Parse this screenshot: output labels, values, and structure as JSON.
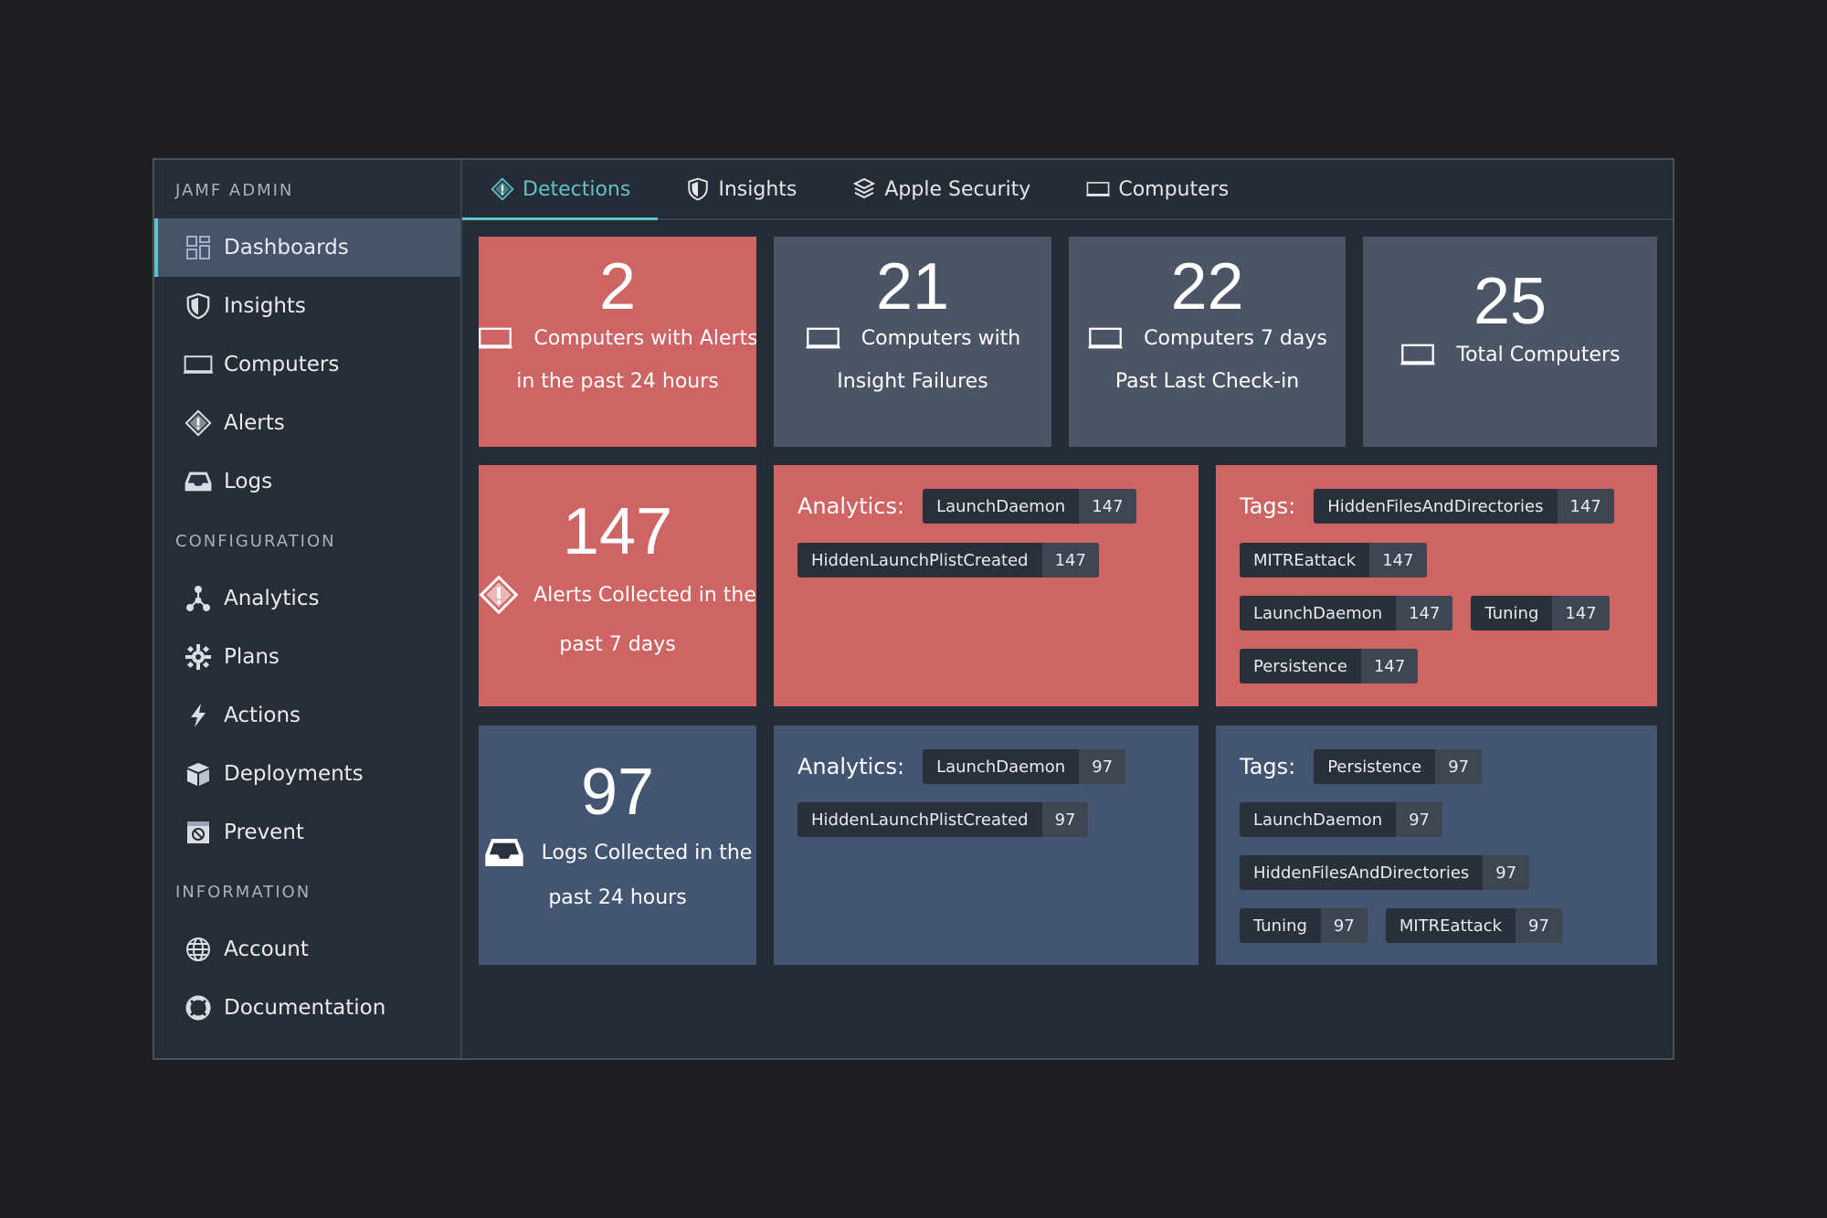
{
  "sidebar": {
    "sections": {
      "admin": "JAMF ADMIN",
      "configuration": "CONFIGURATION",
      "information": "INFORMATION"
    },
    "items": [
      {
        "label": "Dashboards",
        "icon": "dashboard-icon"
      },
      {
        "label": "Insights",
        "icon": "shield-icon"
      },
      {
        "label": "Computers",
        "icon": "laptop-icon"
      },
      {
        "label": "Alerts",
        "icon": "alert-diamond-icon"
      },
      {
        "label": "Logs",
        "icon": "inbox-icon"
      },
      {
        "label": "Analytics",
        "icon": "analytics-icon"
      },
      {
        "label": "Plans",
        "icon": "gear-icon"
      },
      {
        "label": "Actions",
        "icon": "lightning-icon"
      },
      {
        "label": "Deployments",
        "icon": "package-icon"
      },
      {
        "label": "Prevent",
        "icon": "prevent-icon"
      },
      {
        "label": "Account",
        "icon": "globe-icon"
      },
      {
        "label": "Documentation",
        "icon": "lifebuoy-icon"
      }
    ],
    "active": "Dashboards"
  },
  "tabs": [
    {
      "label": "Detections",
      "icon": "alert-diamond-icon",
      "active": true
    },
    {
      "label": "Insights",
      "icon": "shield-icon",
      "active": false
    },
    {
      "label": "Apple Security",
      "icon": "layers-icon",
      "active": false
    },
    {
      "label": "Computers",
      "icon": "laptop-icon",
      "active": false
    }
  ],
  "stats": {
    "alerts_24h": {
      "value": "2",
      "line1": "Computers with Alerts",
      "line2": "in the past 24 hours"
    },
    "insight_failures": {
      "value": "21",
      "line1": "Computers with",
      "line2": "Insight Failures"
    },
    "checkin": {
      "value": "22",
      "line1": "Computers 7 days",
      "line2": "Past Last Check-in"
    },
    "total": {
      "value": "25",
      "line1": "Total Computers"
    },
    "alerts_7d": {
      "value": "147",
      "line1": "Alerts Collected in the",
      "line2": "past 7 days"
    },
    "logs_24h": {
      "value": "97",
      "line1": "Logs Collected in the",
      "line2": "past 24 hours"
    }
  },
  "alerts_analytics": {
    "label": "Analytics:",
    "chips": [
      {
        "name": "LaunchDaemon",
        "count": "147"
      },
      {
        "name": "HiddenLaunchPlistCreated",
        "count": "147"
      }
    ]
  },
  "alerts_tags": {
    "label": "Tags:",
    "chips": [
      {
        "name": "HiddenFilesAndDirectories",
        "count": "147"
      },
      {
        "name": "MITREattack",
        "count": "147"
      },
      {
        "name": "LaunchDaemon",
        "count": "147"
      },
      {
        "name": "Tuning",
        "count": "147"
      },
      {
        "name": "Persistence",
        "count": "147"
      }
    ]
  },
  "logs_analytics": {
    "label": "Analytics:",
    "chips": [
      {
        "name": "LaunchDaemon",
        "count": "97"
      },
      {
        "name": "HiddenLaunchPlistCreated",
        "count": "97"
      }
    ]
  },
  "logs_tags": {
    "label": "Tags:",
    "chips": [
      {
        "name": "Persistence",
        "count": "97"
      },
      {
        "name": "LaunchDaemon",
        "count": "97"
      },
      {
        "name": "HiddenFilesAndDirectories",
        "count": "97"
      },
      {
        "name": "Tuning",
        "count": "97"
      },
      {
        "name": "MITREattack",
        "count": "97"
      }
    ]
  },
  "colors": {
    "accent": "#5ec3c7",
    "alert_red": "#ce6463",
    "slate": "#4c5566",
    "blue": "#435570"
  }
}
